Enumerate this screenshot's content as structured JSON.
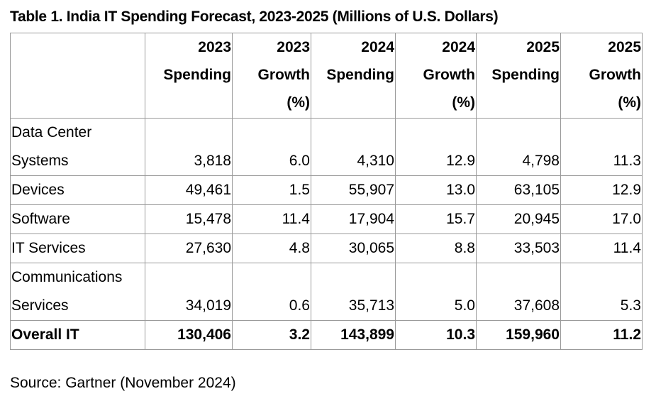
{
  "title": "Table 1. India IT Spending Forecast, 2023-2025 (Millions of U.S. Dollars)",
  "columns": [
    {
      "lines": [
        "2023",
        "Spending"
      ]
    },
    {
      "lines": [
        "2023",
        "Growth",
        "(%)"
      ]
    },
    {
      "lines": [
        "2024",
        "Spending"
      ]
    },
    {
      "lines": [
        "2024",
        "Growth",
        "(%)"
      ]
    },
    {
      "lines": [
        "2025",
        "Spending"
      ]
    },
    {
      "lines": [
        "2025",
        "Growth",
        "(%)"
      ]
    }
  ],
  "rows": [
    {
      "label": [
        "Data Center",
        "Systems"
      ],
      "values": [
        "3,818",
        "6.0",
        "4,310",
        "12.9",
        "4,798",
        "11.3"
      ]
    },
    {
      "label": [
        "Devices"
      ],
      "values": [
        "49,461",
        "1.5",
        "55,907",
        "13.0",
        "63,105",
        "12.9"
      ]
    },
    {
      "label": [
        "Software"
      ],
      "values": [
        "15,478",
        "11.4",
        "17,904",
        "15.7",
        "20,945",
        "17.0"
      ]
    },
    {
      "label": [
        "IT Services"
      ],
      "values": [
        "27,630",
        "4.8",
        "30,065",
        "8.8",
        "33,503",
        "11.4"
      ]
    },
    {
      "label": [
        "Communications",
        "Services"
      ],
      "values": [
        "34,019",
        "0.6",
        "35,713",
        "5.0",
        "37,608",
        "5.3"
      ]
    },
    {
      "label": [
        "Overall IT"
      ],
      "values": [
        "130,406",
        "3.2",
        "143,899",
        "10.3",
        "159,960",
        "11.2"
      ],
      "total": true
    }
  ],
  "source": "Source: Gartner (November 2024)"
}
